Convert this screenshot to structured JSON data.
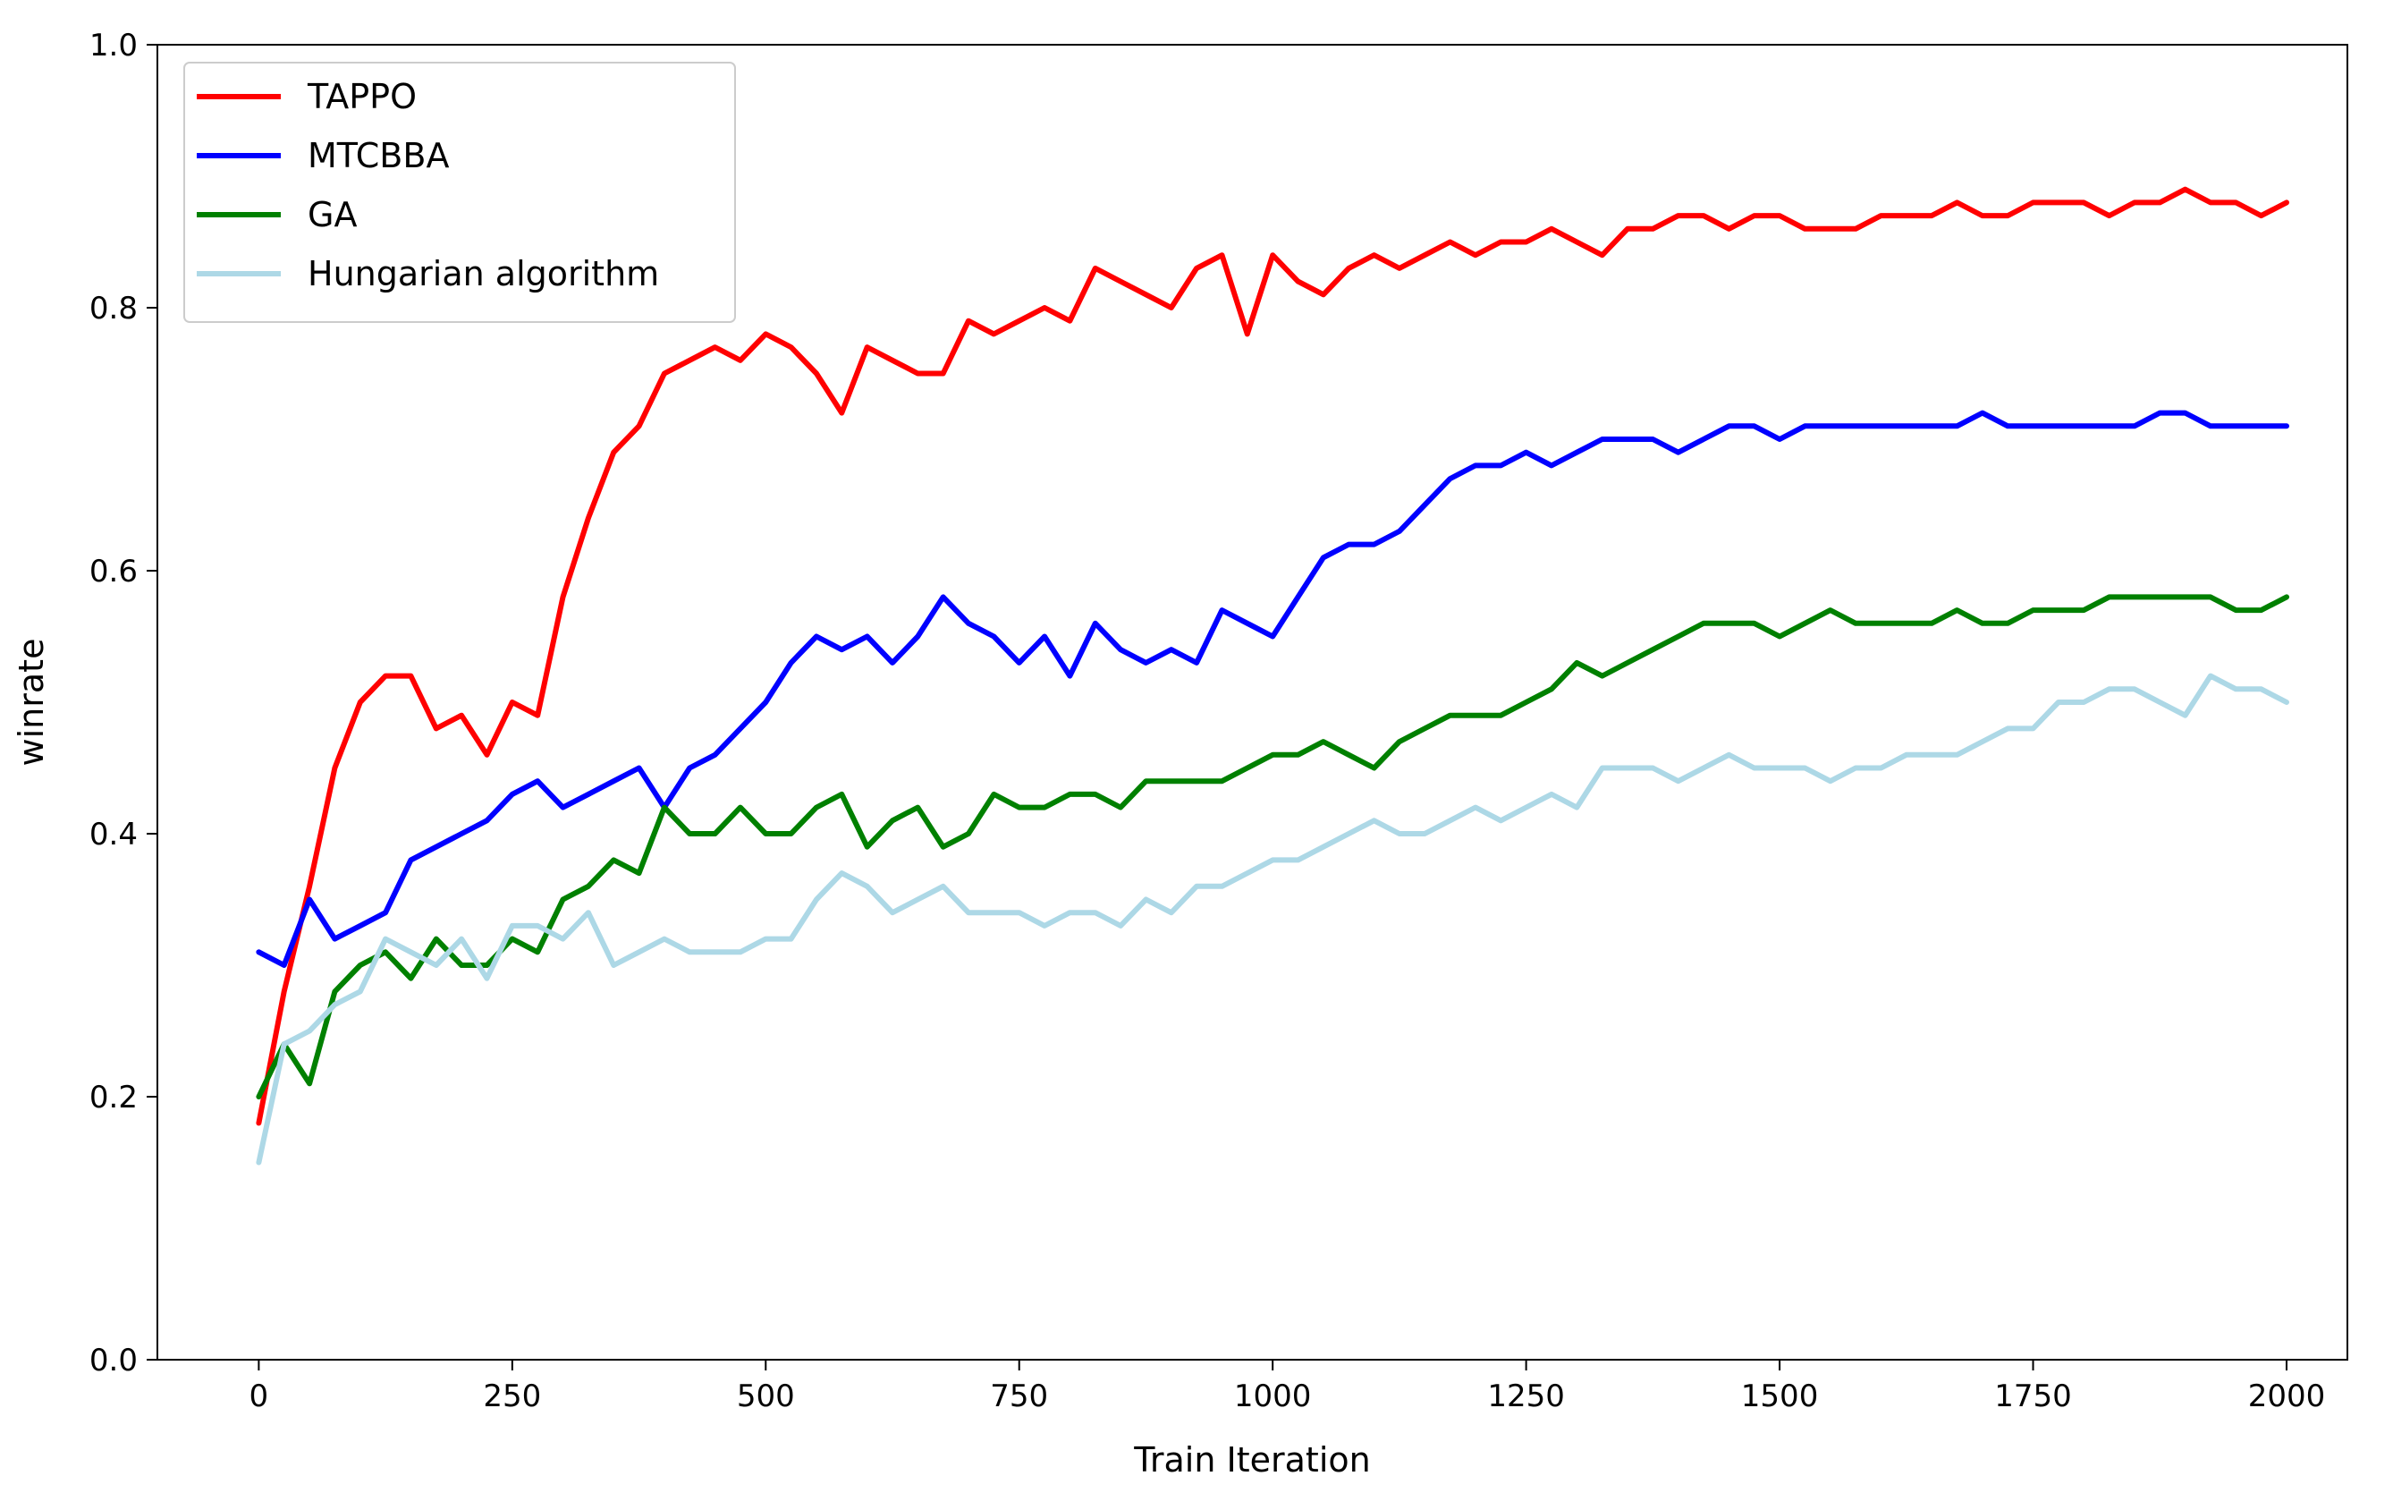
{
  "chart_data": {
    "type": "line",
    "xlabel": "Train Iteration",
    "ylabel": "winrate",
    "xlim": [
      -100,
      2060
    ],
    "ylim": [
      0.0,
      1.0
    ],
    "xticks": [
      0,
      250,
      500,
      750,
      1000,
      1250,
      1500,
      1750,
      2000
    ],
    "yticks": [
      0.0,
      0.2,
      0.4,
      0.6,
      0.8,
      1.0
    ],
    "ytick_labels": [
      "0.0",
      "0.2",
      "0.4",
      "0.6",
      "0.8",
      "1.0"
    ],
    "grid": false,
    "legend_position": "top-left",
    "series": [
      {
        "name": "TAPPO",
        "color": "#ff0000",
        "x": [
          0,
          25,
          50,
          75,
          100,
          125,
          150,
          175,
          200,
          225,
          250,
          275,
          300,
          325,
          350,
          375,
          400,
          425,
          450,
          475,
          500,
          525,
          550,
          575,
          600,
          625,
          650,
          675,
          700,
          725,
          750,
          775,
          800,
          825,
          850,
          875,
          900,
          925,
          950,
          975,
          1000,
          1025,
          1050,
          1075,
          1100,
          1125,
          1150,
          1175,
          1200,
          1225,
          1250,
          1275,
          1300,
          1325,
          1350,
          1375,
          1400,
          1425,
          1450,
          1475,
          1500,
          1525,
          1550,
          1575,
          1600,
          1625,
          1650,
          1675,
          1700,
          1725,
          1750,
          1775,
          1800,
          1825,
          1850,
          1875,
          1900,
          1925,
          1950,
          1975,
          2000
        ],
        "y": [
          0.18,
          0.28,
          0.36,
          0.45,
          0.5,
          0.52,
          0.52,
          0.48,
          0.49,
          0.46,
          0.5,
          0.49,
          0.58,
          0.64,
          0.69,
          0.71,
          0.75,
          0.76,
          0.77,
          0.76,
          0.78,
          0.77,
          0.75,
          0.72,
          0.77,
          0.76,
          0.75,
          0.75,
          0.79,
          0.78,
          0.79,
          0.8,
          0.79,
          0.83,
          0.82,
          0.81,
          0.8,
          0.83,
          0.84,
          0.78,
          0.84,
          0.82,
          0.81,
          0.83,
          0.84,
          0.83,
          0.84,
          0.85,
          0.84,
          0.85,
          0.85,
          0.86,
          0.85,
          0.84,
          0.86,
          0.86,
          0.87,
          0.87,
          0.86,
          0.87,
          0.87,
          0.86,
          0.86,
          0.86,
          0.87,
          0.87,
          0.87,
          0.88,
          0.87,
          0.87,
          0.88,
          0.88,
          0.88,
          0.87,
          0.88,
          0.88,
          0.89,
          0.88,
          0.88,
          0.87,
          0.88
        ]
      },
      {
        "name": "MTCBBA",
        "color": "#0000ff",
        "x": [
          0,
          25,
          50,
          75,
          100,
          125,
          150,
          175,
          200,
          225,
          250,
          275,
          300,
          325,
          350,
          375,
          400,
          425,
          450,
          475,
          500,
          525,
          550,
          575,
          600,
          625,
          650,
          675,
          700,
          725,
          750,
          775,
          800,
          825,
          850,
          875,
          900,
          925,
          950,
          975,
          1000,
          1025,
          1050,
          1075,
          1100,
          1125,
          1150,
          1175,
          1200,
          1225,
          1250,
          1275,
          1300,
          1325,
          1350,
          1375,
          1400,
          1425,
          1450,
          1475,
          1500,
          1525,
          1550,
          1575,
          1600,
          1625,
          1650,
          1675,
          1700,
          1725,
          1750,
          1775,
          1800,
          1825,
          1850,
          1875,
          1900,
          1925,
          1950,
          1975,
          2000
        ],
        "y": [
          0.31,
          0.3,
          0.35,
          0.32,
          0.33,
          0.34,
          0.38,
          0.39,
          0.4,
          0.41,
          0.43,
          0.44,
          0.42,
          0.43,
          0.44,
          0.45,
          0.42,
          0.45,
          0.46,
          0.48,
          0.5,
          0.53,
          0.55,
          0.54,
          0.55,
          0.53,
          0.55,
          0.58,
          0.56,
          0.55,
          0.53,
          0.55,
          0.52,
          0.56,
          0.54,
          0.53,
          0.54,
          0.53,
          0.57,
          0.56,
          0.55,
          0.58,
          0.61,
          0.62,
          0.62,
          0.63,
          0.65,
          0.67,
          0.68,
          0.68,
          0.69,
          0.68,
          0.69,
          0.7,
          0.7,
          0.7,
          0.69,
          0.7,
          0.71,
          0.71,
          0.7,
          0.71,
          0.71,
          0.71,
          0.71,
          0.71,
          0.71,
          0.71,
          0.72,
          0.71,
          0.71,
          0.71,
          0.71,
          0.71,
          0.71,
          0.72,
          0.72,
          0.71,
          0.71,
          0.71,
          0.71
        ]
      },
      {
        "name": "GA",
        "color": "#008000",
        "x": [
          0,
          25,
          50,
          75,
          100,
          125,
          150,
          175,
          200,
          225,
          250,
          275,
          300,
          325,
          350,
          375,
          400,
          425,
          450,
          475,
          500,
          525,
          550,
          575,
          600,
          625,
          650,
          675,
          700,
          725,
          750,
          775,
          800,
          825,
          850,
          875,
          900,
          925,
          950,
          975,
          1000,
          1025,
          1050,
          1075,
          1100,
          1125,
          1150,
          1175,
          1200,
          1225,
          1250,
          1275,
          1300,
          1325,
          1350,
          1375,
          1400,
          1425,
          1450,
          1475,
          1500,
          1525,
          1550,
          1575,
          1600,
          1625,
          1650,
          1675,
          1700,
          1725,
          1750,
          1775,
          1800,
          1825,
          1850,
          1875,
          1900,
          1925,
          1950,
          1975,
          2000
        ],
        "y": [
          0.2,
          0.24,
          0.21,
          0.28,
          0.3,
          0.31,
          0.29,
          0.32,
          0.3,
          0.3,
          0.32,
          0.31,
          0.35,
          0.36,
          0.38,
          0.37,
          0.42,
          0.4,
          0.4,
          0.42,
          0.4,
          0.4,
          0.42,
          0.43,
          0.39,
          0.41,
          0.42,
          0.39,
          0.4,
          0.43,
          0.42,
          0.42,
          0.43,
          0.43,
          0.42,
          0.44,
          0.44,
          0.44,
          0.44,
          0.45,
          0.46,
          0.46,
          0.47,
          0.46,
          0.45,
          0.47,
          0.48,
          0.49,
          0.49,
          0.49,
          0.5,
          0.51,
          0.53,
          0.52,
          0.53,
          0.54,
          0.55,
          0.56,
          0.56,
          0.56,
          0.55,
          0.56,
          0.57,
          0.56,
          0.56,
          0.56,
          0.56,
          0.57,
          0.56,
          0.56,
          0.57,
          0.57,
          0.57,
          0.58,
          0.58,
          0.58,
          0.58,
          0.58,
          0.57,
          0.57,
          0.58
        ]
      },
      {
        "name": "Hungarian algorithm",
        "color": "#add8e6",
        "x": [
          0,
          25,
          50,
          75,
          100,
          125,
          150,
          175,
          200,
          225,
          250,
          275,
          300,
          325,
          350,
          375,
          400,
          425,
          450,
          475,
          500,
          525,
          550,
          575,
          600,
          625,
          650,
          675,
          700,
          725,
          750,
          775,
          800,
          825,
          850,
          875,
          900,
          925,
          950,
          975,
          1000,
          1025,
          1050,
          1075,
          1100,
          1125,
          1150,
          1175,
          1200,
          1225,
          1250,
          1275,
          1300,
          1325,
          1350,
          1375,
          1400,
          1425,
          1450,
          1475,
          1500,
          1525,
          1550,
          1575,
          1600,
          1625,
          1650,
          1675,
          1700,
          1725,
          1750,
          1775,
          1800,
          1825,
          1850,
          1875,
          1900,
          1925,
          1950,
          1975,
          2000
        ],
        "y": [
          0.15,
          0.24,
          0.25,
          0.27,
          0.28,
          0.32,
          0.31,
          0.3,
          0.32,
          0.29,
          0.33,
          0.33,
          0.32,
          0.34,
          0.3,
          0.31,
          0.32,
          0.31,
          0.31,
          0.31,
          0.32,
          0.32,
          0.35,
          0.37,
          0.36,
          0.34,
          0.35,
          0.36,
          0.34,
          0.34,
          0.34,
          0.33,
          0.34,
          0.34,
          0.33,
          0.35,
          0.34,
          0.36,
          0.36,
          0.37,
          0.38,
          0.38,
          0.39,
          0.4,
          0.41,
          0.4,
          0.4,
          0.41,
          0.42,
          0.41,
          0.42,
          0.43,
          0.42,
          0.45,
          0.45,
          0.45,
          0.44,
          0.45,
          0.46,
          0.45,
          0.45,
          0.45,
          0.44,
          0.45,
          0.45,
          0.46,
          0.46,
          0.46,
          0.47,
          0.48,
          0.48,
          0.5,
          0.5,
          0.51,
          0.51,
          0.5,
          0.49,
          0.52,
          0.51,
          0.51,
          0.5
        ]
      }
    ]
  }
}
